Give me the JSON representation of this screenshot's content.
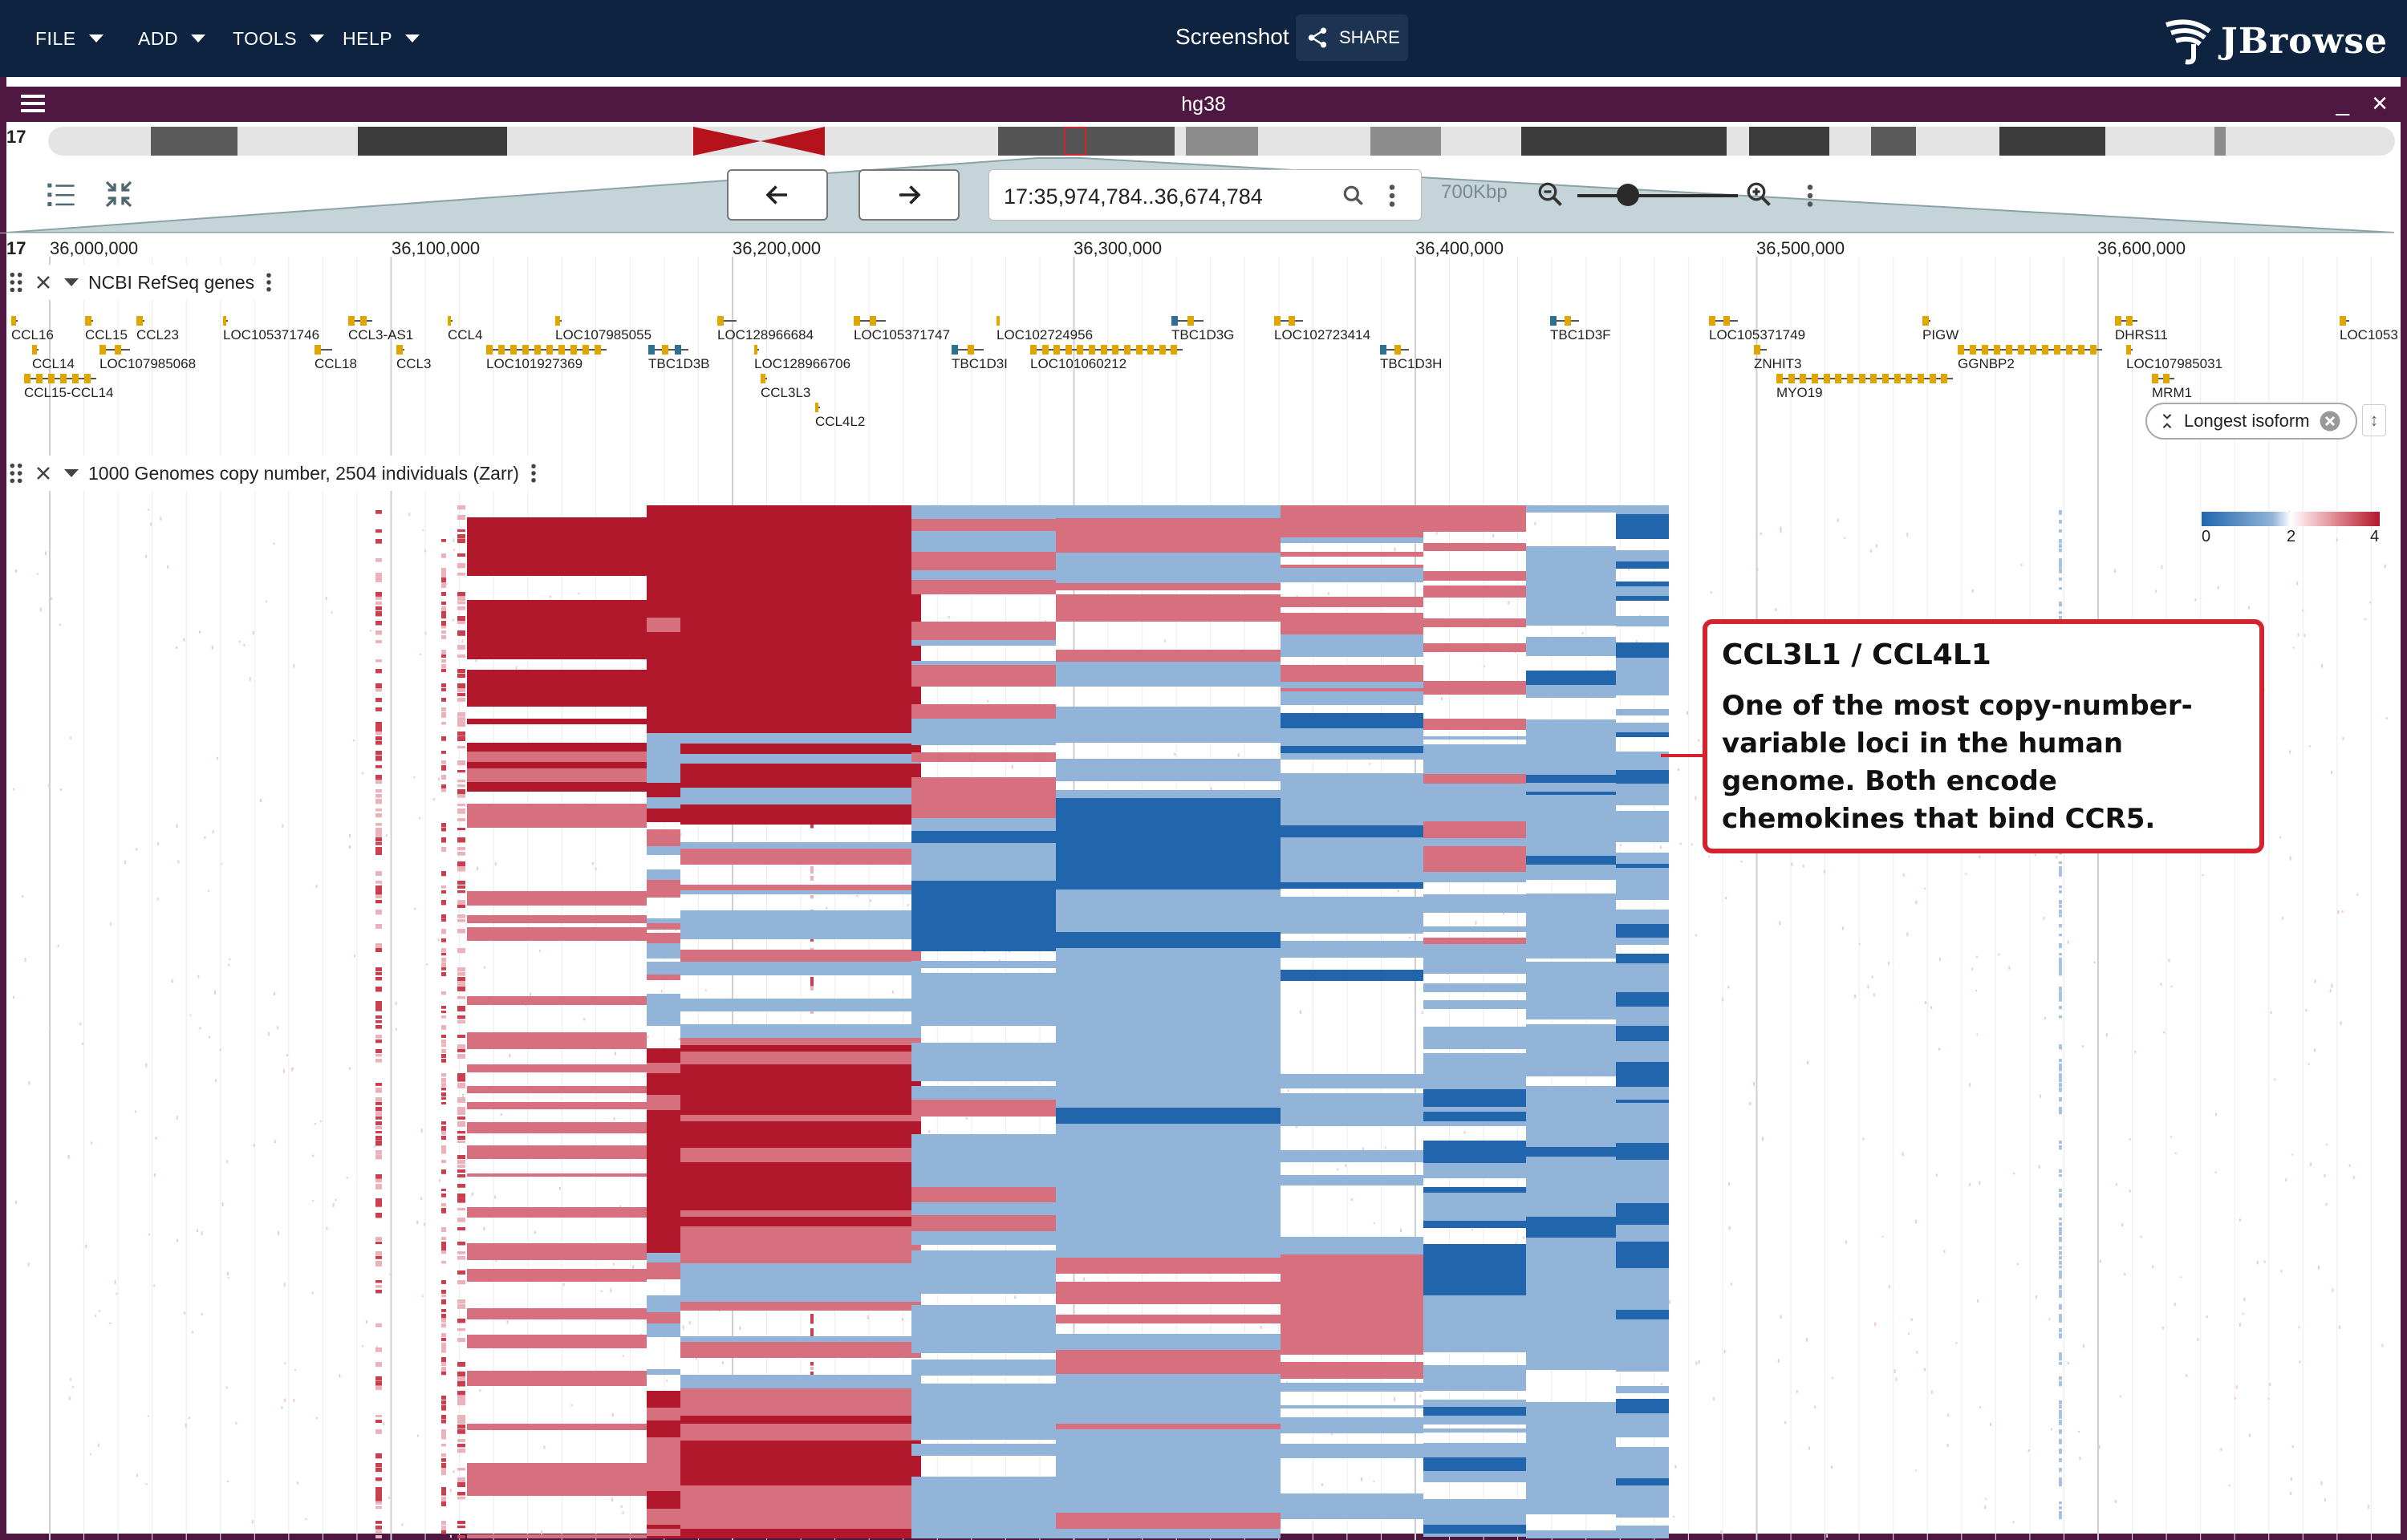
{
  "appbar": {
    "menus": [
      "FILE",
      "ADD",
      "TOOLS",
      "HELP"
    ],
    "session_name": "Screenshot",
    "share_label": "SHARE",
    "logo_text": "JBrowse"
  },
  "view": {
    "assembly": "hg38",
    "chromosome": "17",
    "locstring": "17:35,974,784..36,674,784",
    "bp_label": "700Kbp"
  },
  "ruler": {
    "labels": [
      "36,000,000",
      "36,100,000",
      "36,200,000",
      "36,300,000",
      "36,400,000",
      "36,500,000",
      "36,600,000"
    ]
  },
  "gene_track": {
    "name": "NCBI RefSeq genes",
    "genes": [
      {
        "name": "CCL16",
        "row": 0
      },
      {
        "name": "CCL15",
        "row": 0
      },
      {
        "name": "CCL23",
        "row": 0
      },
      {
        "name": "LOC105371746",
        "row": 0
      },
      {
        "name": "CCL3-AS1",
        "row": 0
      },
      {
        "name": "CCL4",
        "row": 0
      },
      {
        "name": "LOC107985055",
        "row": 0
      },
      {
        "name": "LOC128966684",
        "row": 0
      },
      {
        "name": "LOC105371747",
        "row": 0
      },
      {
        "name": "LOC102724956",
        "row": 0
      },
      {
        "name": "TBC1D3G",
        "row": 0
      },
      {
        "name": "LOC102723414",
        "row": 0
      },
      {
        "name": "TBC1D3F",
        "row": 0
      },
      {
        "name": "LOC105371749",
        "row": 0
      },
      {
        "name": "PIGW",
        "row": 0
      },
      {
        "name": "DHRS11",
        "row": 0
      },
      {
        "name": "LOC1053",
        "row": 0
      },
      {
        "name": "CCL14",
        "row": 1
      },
      {
        "name": "LOC107985068",
        "row": 1
      },
      {
        "name": "CCL18",
        "row": 1
      },
      {
        "name": "CCL3",
        "row": 1
      },
      {
        "name": "LOC101927369",
        "row": 1
      },
      {
        "name": "TBC1D3B",
        "row": 1
      },
      {
        "name": "LOC128966706",
        "row": 1
      },
      {
        "name": "TBC1D3I",
        "row": 1
      },
      {
        "name": "LOC101060212",
        "row": 1
      },
      {
        "name": "TBC1D3H",
        "row": 1
      },
      {
        "name": "ZNHIT3",
        "row": 1
      },
      {
        "name": "GGNBP2",
        "row": 1
      },
      {
        "name": "LOC107985031",
        "row": 1
      },
      {
        "name": "CCL15-CCL14",
        "row": 2
      },
      {
        "name": "CCL3L3",
        "row": 2
      },
      {
        "name": "MYO19",
        "row": 2
      },
      {
        "name": "MRM1",
        "row": 2
      },
      {
        "name": "CCL4L2",
        "row": 3
      }
    ],
    "isoform_chip": "Longest isoform"
  },
  "cn_track": {
    "name": "1000 Genomes copy number, 2504 individuals (Zarr)",
    "legend": {
      "ticks": [
        "0",
        "2",
        "4"
      ],
      "low_color": "#2166ac",
      "mid_color": "#ffffff",
      "high_color": "#b2182b"
    }
  },
  "callout": {
    "title": "CCL3L1 / CCL4L1",
    "body": "One of the most copy-number-variable loci in the human genome. Both encode chemokines that bind CCR5.",
    "color": "#d3232e"
  },
  "colors": {
    "appbar": "#0d233f",
    "view_frame": "#4e1843",
    "gene": "#e0a500",
    "tbc_gene": "#2f6f8f"
  }
}
